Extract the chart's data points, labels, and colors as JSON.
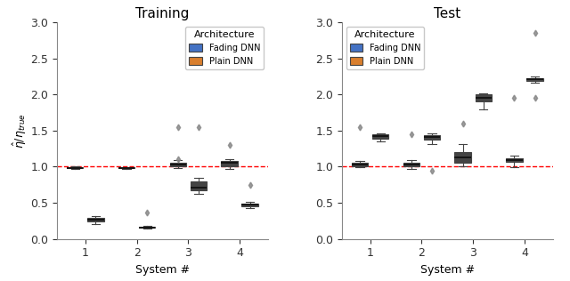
{
  "title_train": "Training",
  "title_test": "Test",
  "xlabel": "System #",
  "ylabel": "$\\hat{\\eta}/\\eta_{true}$",
  "ylim": [
    0.0,
    3.0
  ],
  "yticks": [
    0.0,
    0.5,
    1.0,
    1.5,
    2.0,
    2.5,
    3.0
  ],
  "xticks": [
    1,
    2,
    3,
    4
  ],
  "hline_y": 1.0,
  "hline_color": "red",
  "color_fading": "#4472c4",
  "color_plain": "#d97f2e",
  "legend_title": "Architecture",
  "legend_labels": [
    "Fading DNN",
    "Plain DNN"
  ],
  "train_fading": {
    "sys1": {
      "q1": 0.978,
      "median": 0.987,
      "q3": 0.993,
      "whislo": 0.965,
      "whishi": 1.002,
      "fliers": []
    },
    "sys2": {
      "q1": 0.977,
      "median": 0.984,
      "q3": 0.991,
      "whislo": 0.967,
      "whishi": 0.999,
      "fliers": []
    },
    "sys3": {
      "q1": 1.0,
      "median": 1.03,
      "q3": 1.055,
      "whislo": 0.985,
      "whishi": 1.095,
      "fliers": [
        1.1,
        1.55
      ]
    },
    "sys4": {
      "q1": 1.0,
      "median": 1.05,
      "q3": 1.08,
      "whislo": 0.975,
      "whishi": 1.1,
      "fliers": [
        1.3
      ]
    }
  },
  "train_plain": {
    "sys1": {
      "q1": 0.245,
      "median": 0.265,
      "q3": 0.285,
      "whislo": 0.21,
      "whishi": 0.31,
      "fliers": []
    },
    "sys2": {
      "q1": 0.152,
      "median": 0.16,
      "q3": 0.168,
      "whislo": 0.143,
      "whishi": 0.175,
      "fliers": [
        0.37
      ]
    },
    "sys3": {
      "q1": 0.675,
      "median": 0.715,
      "q3": 0.8,
      "whislo": 0.62,
      "whishi": 0.85,
      "fliers": [
        1.55
      ]
    },
    "sys4": {
      "q1": 0.455,
      "median": 0.47,
      "q3": 0.49,
      "whislo": 0.43,
      "whishi": 0.51,
      "fliers": [
        0.75
      ]
    }
  },
  "test_fading": {
    "sys1": {
      "q1": 1.01,
      "median": 1.03,
      "q3": 1.052,
      "whislo": 0.99,
      "whishi": 1.08,
      "fliers": [
        1.55
      ]
    },
    "sys2": {
      "q1": 1.01,
      "median": 1.03,
      "q3": 1.055,
      "whislo": 0.97,
      "whishi": 1.095,
      "fliers": [
        1.45
      ]
    },
    "sys3": {
      "q1": 1.06,
      "median": 1.13,
      "q3": 1.2,
      "whislo": 1.0,
      "whishi": 1.32,
      "fliers": [
        1.6
      ]
    },
    "sys4": {
      "q1": 1.065,
      "median": 1.095,
      "q3": 1.12,
      "whislo": 0.99,
      "whishi": 1.155,
      "fliers": [
        1.95
      ]
    }
  },
  "test_plain": {
    "sys1": {
      "q1": 1.39,
      "median": 1.42,
      "q3": 1.445,
      "whislo": 1.35,
      "whishi": 1.46,
      "fliers": []
    },
    "sys2": {
      "q1": 1.38,
      "median": 1.41,
      "q3": 1.44,
      "whislo": 1.32,
      "whishi": 1.46,
      "fliers": [
        0.95
      ]
    },
    "sys3": {
      "q1": 1.9,
      "median": 1.96,
      "q3": 2.0,
      "whislo": 1.8,
      "whishi": 2.02,
      "fliers": []
    },
    "sys4": {
      "q1": 2.19,
      "median": 2.21,
      "q3": 2.23,
      "whislo": 2.16,
      "whishi": 2.25,
      "fliers": [
        2.85,
        1.95
      ]
    }
  }
}
